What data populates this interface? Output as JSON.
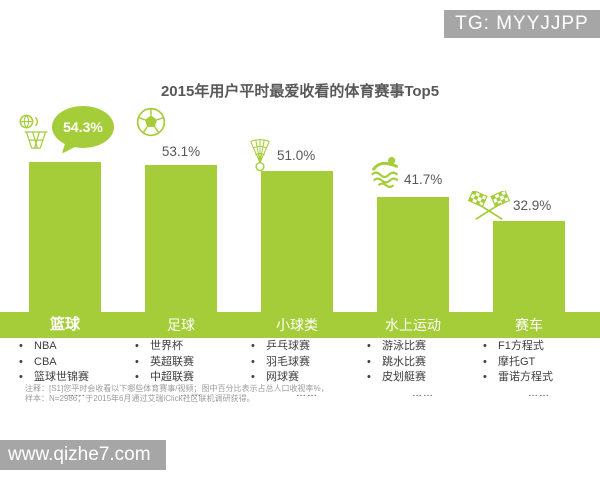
{
  "watermarks": {
    "top_right": "TG: MYYJJPP",
    "bottom_left": "www.qizhe7.com"
  },
  "chart_data": {
    "type": "bar",
    "title": "2015年用户平时最爱收看的体育赛事Top5",
    "unit": "%",
    "categories": [
      "篮球",
      "足球",
      "小球类",
      "水上运动",
      "赛车"
    ],
    "values": [
      54.3,
      53.1,
      51.0,
      41.7,
      32.9
    ],
    "value_labels": [
      "54.3%",
      "53.1%",
      "51.0%",
      "41.7%",
      "32.9%"
    ],
    "highlight_index": 0,
    "bar_color": "#a5cd39",
    "label_color": "#595757",
    "legend_position": "none",
    "grid": false,
    "icons": [
      "basketball-hoop-icon",
      "soccer-ball-icon",
      "shuttlecock-icon",
      "swimmer-icon",
      "racing-flags-icon"
    ],
    "sub_items": [
      [
        "NBA",
        "CBA",
        "篮球世锦赛"
      ],
      [
        "世界杯",
        "英超联赛",
        "中超联赛"
      ],
      [
        "乒乓球赛",
        "羽毛球赛",
        "网球赛"
      ],
      [
        "游泳比赛",
        "跳水比赛",
        "皮划艇赛"
      ],
      [
        "F1方程式",
        "摩托GT",
        "雷诺方程式"
      ]
    ],
    "ellipsis": "……",
    "notes": [
      "注释：[S1]您平时会收看以下哪些体育赛事/视频；图中百分比表示占总人口收视率%，",
      "样本：N=2986；于2015年6月通过艾瑞iClick社区联机调研获得。"
    ]
  }
}
